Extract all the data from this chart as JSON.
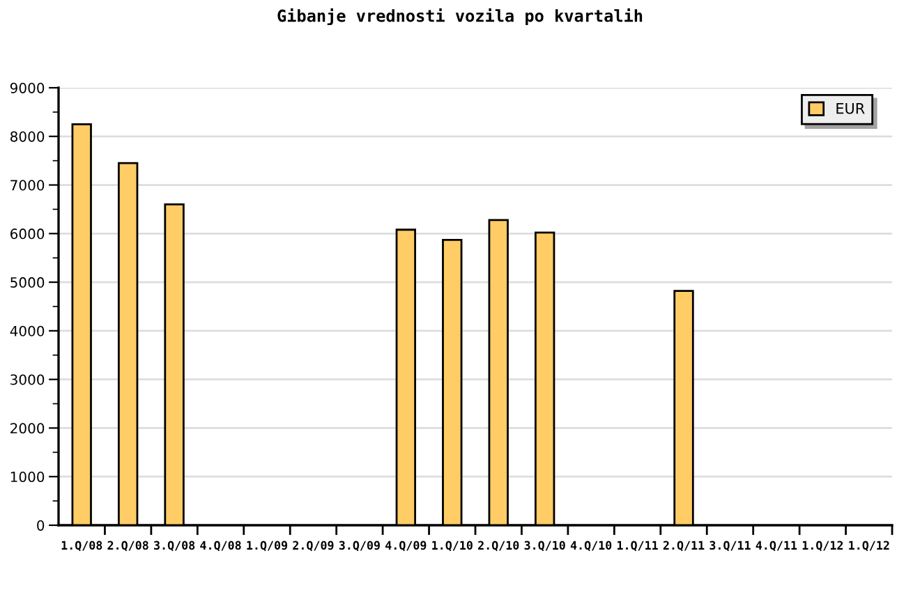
{
  "chart_data": {
    "type": "bar",
    "title": "Gibanje vrednosti vozila po kvartalih",
    "categories": [
      "1.Q/08",
      "2.Q/08",
      "3.Q/08",
      "4.Q/08",
      "1.Q/09",
      "2.Q/09",
      "3.Q/09",
      "4.Q/09",
      "1.Q/10",
      "2.Q/10",
      "3.Q/10",
      "4.Q/10",
      "1.Q/11",
      "2.Q/11",
      "3.Q/11",
      "4.Q/11",
      "1.Q/12",
      "1.Q/12"
    ],
    "series": [
      {
        "name": "EUR",
        "color": "#ffcc66",
        "values": [
          8250,
          7450,
          6600,
          null,
          null,
          null,
          null,
          6080,
          5870,
          6280,
          6020,
          null,
          null,
          4820,
          null,
          null,
          null,
          null
        ]
      }
    ],
    "ylim": [
      0,
      9000
    ],
    "yticks": [
      0,
      {
        "value": 500,
        "label": null
      },
      1000,
      {
        "value": 1500,
        "label": null
      },
      2000,
      {
        "value": 2500,
        "label": null
      },
      3000,
      {
        "value": 3500,
        "label": null
      },
      4000,
      {
        "value": 4500,
        "label": null
      },
      5000,
      {
        "value": 5500,
        "label": null
      },
      6000,
      {
        "value": 6500,
        "label": null
      },
      7000,
      {
        "value": 7500,
        "label": null
      },
      8000,
      {
        "value": 8500,
        "label": null
      },
      9000
    ],
    "grid": "y",
    "legend": "top right"
  }
}
